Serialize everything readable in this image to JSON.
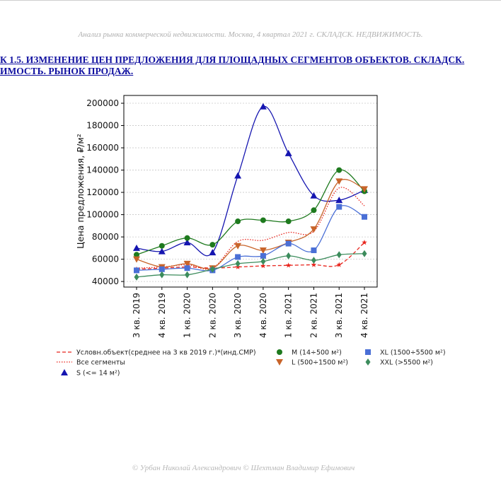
{
  "page": {
    "header": "Анализ рынка коммерческой недвижимости.   Москва,  4 квартал 2021 г.   СКЛАДСК. НЕДВИЖИМОСТЬ.",
    "caption_line1": "К 1.5. ИЗМЕНЕНИЕ ЦЕН ПРЕДЛОЖЕНИЯ ДЛЯ ПЛОЩАДНЫХ СЕГМЕНТОВ ОБЪЕКТОВ. СКЛАДСК.",
    "caption_line2": "ИМОСТЬ. РЫНОК ПРОДАЖ.",
    "footer": "© Урбан Николай Александрович   © Шехтман Владимир Ефимович"
  },
  "chart_data": {
    "type": "line",
    "ylabel": "Цена предложения, ₽/м²",
    "xlabel": "",
    "ylim": [
      35000,
      207000
    ],
    "yticks": [
      40000,
      60000,
      80000,
      100000,
      120000,
      140000,
      160000,
      180000,
      200000
    ],
    "ytick_labels": [
      "40000",
      "60000",
      "80000",
      "100000",
      "120000",
      "140000",
      "160000",
      "180000",
      "200000"
    ],
    "grid": "horizontal dotted",
    "legend_placement": "below",
    "categories": [
      "3 кв. 2019",
      "4 кв. 2019",
      "1 кв. 2020",
      "2 кв. 2020",
      "3 кв. 2020",
      "4 кв. 2020",
      "1 кв. 2021",
      "2 кв. 2021",
      "3 кв. 2021",
      "4 кв. 2021"
    ],
    "series": [
      {
        "name": "Условн.объект(среднее на 3 кв 2019 г.)*(инд.СМР)",
        "color": "#e8241c",
        "style": "dashed",
        "marker": "star",
        "values": [
          51000,
          52000,
          53000,
          52000,
          53000,
          54000,
          54500,
          55000,
          55000,
          75000
        ]
      },
      {
        "name": "Все сегменты",
        "color": "#e8241c",
        "style": "dotted",
        "marker": "none",
        "values": [
          52000,
          53000,
          55000,
          52000,
          76000,
          77000,
          84000,
          85000,
          124000,
          108000
        ]
      },
      {
        "name": "S (<= 14 м²)",
        "color": "#1515b0",
        "style": "solid",
        "marker": "triangle-up",
        "values": [
          70000,
          67000,
          75000,
          66000,
          135000,
          197000,
          155000,
          117000,
          113000,
          122000
        ]
      },
      {
        "name": "M (14÷500 м²)",
        "color": "#1e7a1e",
        "style": "solid",
        "marker": "circle",
        "values": [
          64000,
          72000,
          79000,
          73000,
          94000,
          95000,
          94000,
          104000,
          140000,
          121000
        ]
      },
      {
        "name": "L (500÷1500 м²)",
        "color": "#c8642a",
        "style": "solid",
        "marker": "triangle-down",
        "values": [
          60000,
          53000,
          56000,
          52000,
          72000,
          68000,
          75000,
          87000,
          130000,
          123000
        ]
      },
      {
        "name": "XL (1500÷5500 м²)",
        "color": "#4a6fd6",
        "style": "solid",
        "marker": "square",
        "values": [
          50000,
          51000,
          52000,
          50000,
          62000,
          63000,
          74000,
          68000,
          107000,
          98000
        ]
      },
      {
        "name": "XXL (>5500 м²)",
        "color": "#3c8c5c",
        "style": "solid",
        "marker": "diamond",
        "values": [
          44000,
          46000,
          46000,
          51000,
          56000,
          58000,
          63000,
          59000,
          64000,
          65000
        ]
      }
    ]
  }
}
